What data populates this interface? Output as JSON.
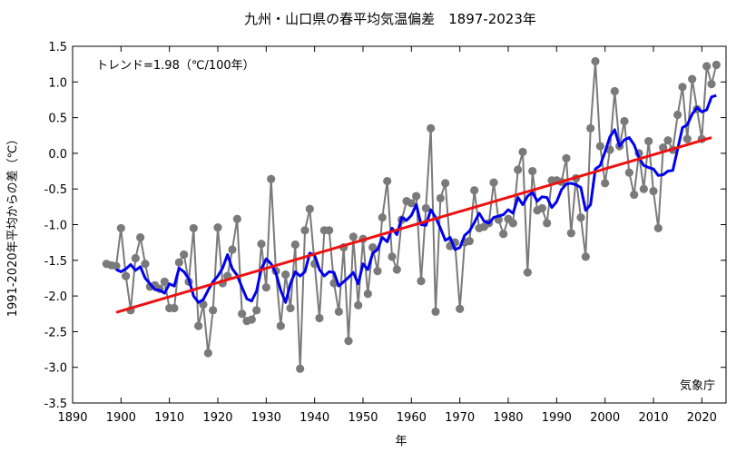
{
  "chart_data": {
    "type": "line",
    "title": "九州・山口県の春平均気温偏差　1897-2023年",
    "xlabel": "年",
    "ylabel": "1991-2020年平均からの差（℃）",
    "xlim": [
      1890,
      2025
    ],
    "ylim": [
      -3.5,
      1.5
    ],
    "x_ticks": [
      1890,
      1900,
      1910,
      1920,
      1930,
      1940,
      1950,
      1960,
      1970,
      1980,
      1990,
      2000,
      2010,
      2020
    ],
    "y_ticks": [
      1.5,
      1.0,
      0.5,
      0.0,
      -0.5,
      -1.0,
      -1.5,
      -2.0,
      -2.5,
      -3.0,
      -3.5
    ],
    "trend_label": "トレンド=1.98（℃/100年）",
    "source": "気象庁",
    "grid": false,
    "colors": {
      "annual": "#7a7a7a",
      "moving_average": "#0000ee",
      "trend": "#ee1111"
    },
    "series": [
      {
        "start_year": 1897,
        "values": [
          -1.55,
          -1.57,
          -1.58,
          -1.05,
          -1.72,
          -2.2,
          -1.47,
          -1.18,
          -1.55,
          -1.87,
          -1.85,
          -1.9,
          -1.8,
          -2.17,
          -2.17,
          -1.53,
          -1.42,
          -1.8,
          -1.05,
          -2.42,
          -2.12,
          -2.8,
          -2.2,
          -1.04,
          -1.82,
          -1.72,
          -1.35,
          -0.92,
          -2.25,
          -2.35,
          -2.33,
          -2.2,
          -1.27,
          -1.88,
          -0.36,
          -1.65,
          -2.42,
          -1.7,
          -2.17,
          -1.28,
          -3.02,
          -1.08,
          -0.78,
          -1.55,
          -2.31,
          -1.08,
          -1.08,
          -1.82,
          -2.22,
          -1.32,
          -2.63,
          -1.17,
          -2.13,
          -1.2,
          -1.97,
          -1.32,
          -1.65,
          -0.9,
          -0.39,
          -1.45,
          -1.63,
          -0.93,
          -0.67,
          -0.7,
          -0.6,
          -1.79,
          -0.77,
          0.35,
          -2.22,
          -0.63,
          -0.42,
          -1.3,
          -1.25,
          -2.18,
          -1.25,
          -1.23,
          -0.52,
          -1.05,
          -1.03,
          -0.98,
          -0.41,
          -0.93,
          -1.13,
          -0.92,
          -0.98,
          -0.23,
          0.02,
          -1.67,
          -0.25,
          -0.8,
          -0.77,
          -0.98,
          -0.38,
          -0.38,
          -0.4,
          -0.07,
          -1.12,
          -0.35,
          -0.9,
          -1.45,
          0.35,
          1.29,
          0.1,
          -0.42,
          0.05,
          0.87,
          0.1,
          0.45,
          -0.27,
          -0.58,
          0.0,
          -0.5,
          0.17,
          -0.53,
          -1.05,
          0.08,
          0.18,
          0.05,
          0.54,
          0.93,
          0.2,
          1.04,
          0.62,
          0.2,
          1.22,
          0.97,
          1.24
        ]
      },
      {
        "start_year": 1899,
        "values": [
          -1.63,
          -1.66,
          -1.62,
          -1.56,
          -1.64,
          -1.59,
          -1.75,
          -1.83,
          -1.91,
          -1.92,
          -1.96,
          -1.83,
          -1.86,
          -1.61,
          -1.66,
          -1.76,
          -2.0,
          -2.09,
          -2.05,
          -1.92,
          -1.8,
          -1.72,
          -1.61,
          -1.42,
          -1.62,
          -1.71,
          -1.88,
          -2.04,
          -2.07,
          -1.93,
          -1.62,
          -1.48,
          -1.55,
          -1.68,
          -1.92,
          -2.09,
          -1.83,
          -1.66,
          -1.72,
          -1.66,
          -1.4,
          -1.43,
          -1.63,
          -1.72,
          -1.66,
          -1.67,
          -1.86,
          -1.8,
          -1.74,
          -1.67,
          -1.83,
          -1.55,
          -1.63,
          -1.4,
          -1.35,
          -1.18,
          -1.24,
          -1.05,
          -1.14,
          -0.9,
          -0.94,
          -0.87,
          -0.72,
          -1.0,
          -1.01,
          -0.79,
          -0.9,
          -1.05,
          -1.22,
          -1.18,
          -1.35,
          -1.32,
          -1.15,
          -1.09,
          -0.97,
          -0.84,
          -0.95,
          -0.98,
          -0.9,
          -0.88,
          -0.86,
          -0.79,
          -0.84,
          -0.62,
          -0.72,
          -0.6,
          -0.55,
          -0.67,
          -0.61,
          -0.62,
          -0.76,
          -0.68,
          -0.51,
          -0.43,
          -0.42,
          -0.44,
          -0.48,
          -0.8,
          -0.72,
          -0.22,
          -0.17,
          0.02,
          0.23,
          0.33,
          0.1,
          0.19,
          0.22,
          0.12,
          -0.06,
          -0.17,
          -0.2,
          -0.22,
          -0.31,
          -0.3,
          -0.25,
          -0.24,
          0.06,
          0.36,
          0.4,
          0.55,
          0.64,
          0.58,
          0.61,
          0.79,
          0.81
        ]
      },
      {
        "x": [
          1899,
          2022
        ],
        "values": [
          -2.23,
          0.22
        ]
      }
    ]
  }
}
